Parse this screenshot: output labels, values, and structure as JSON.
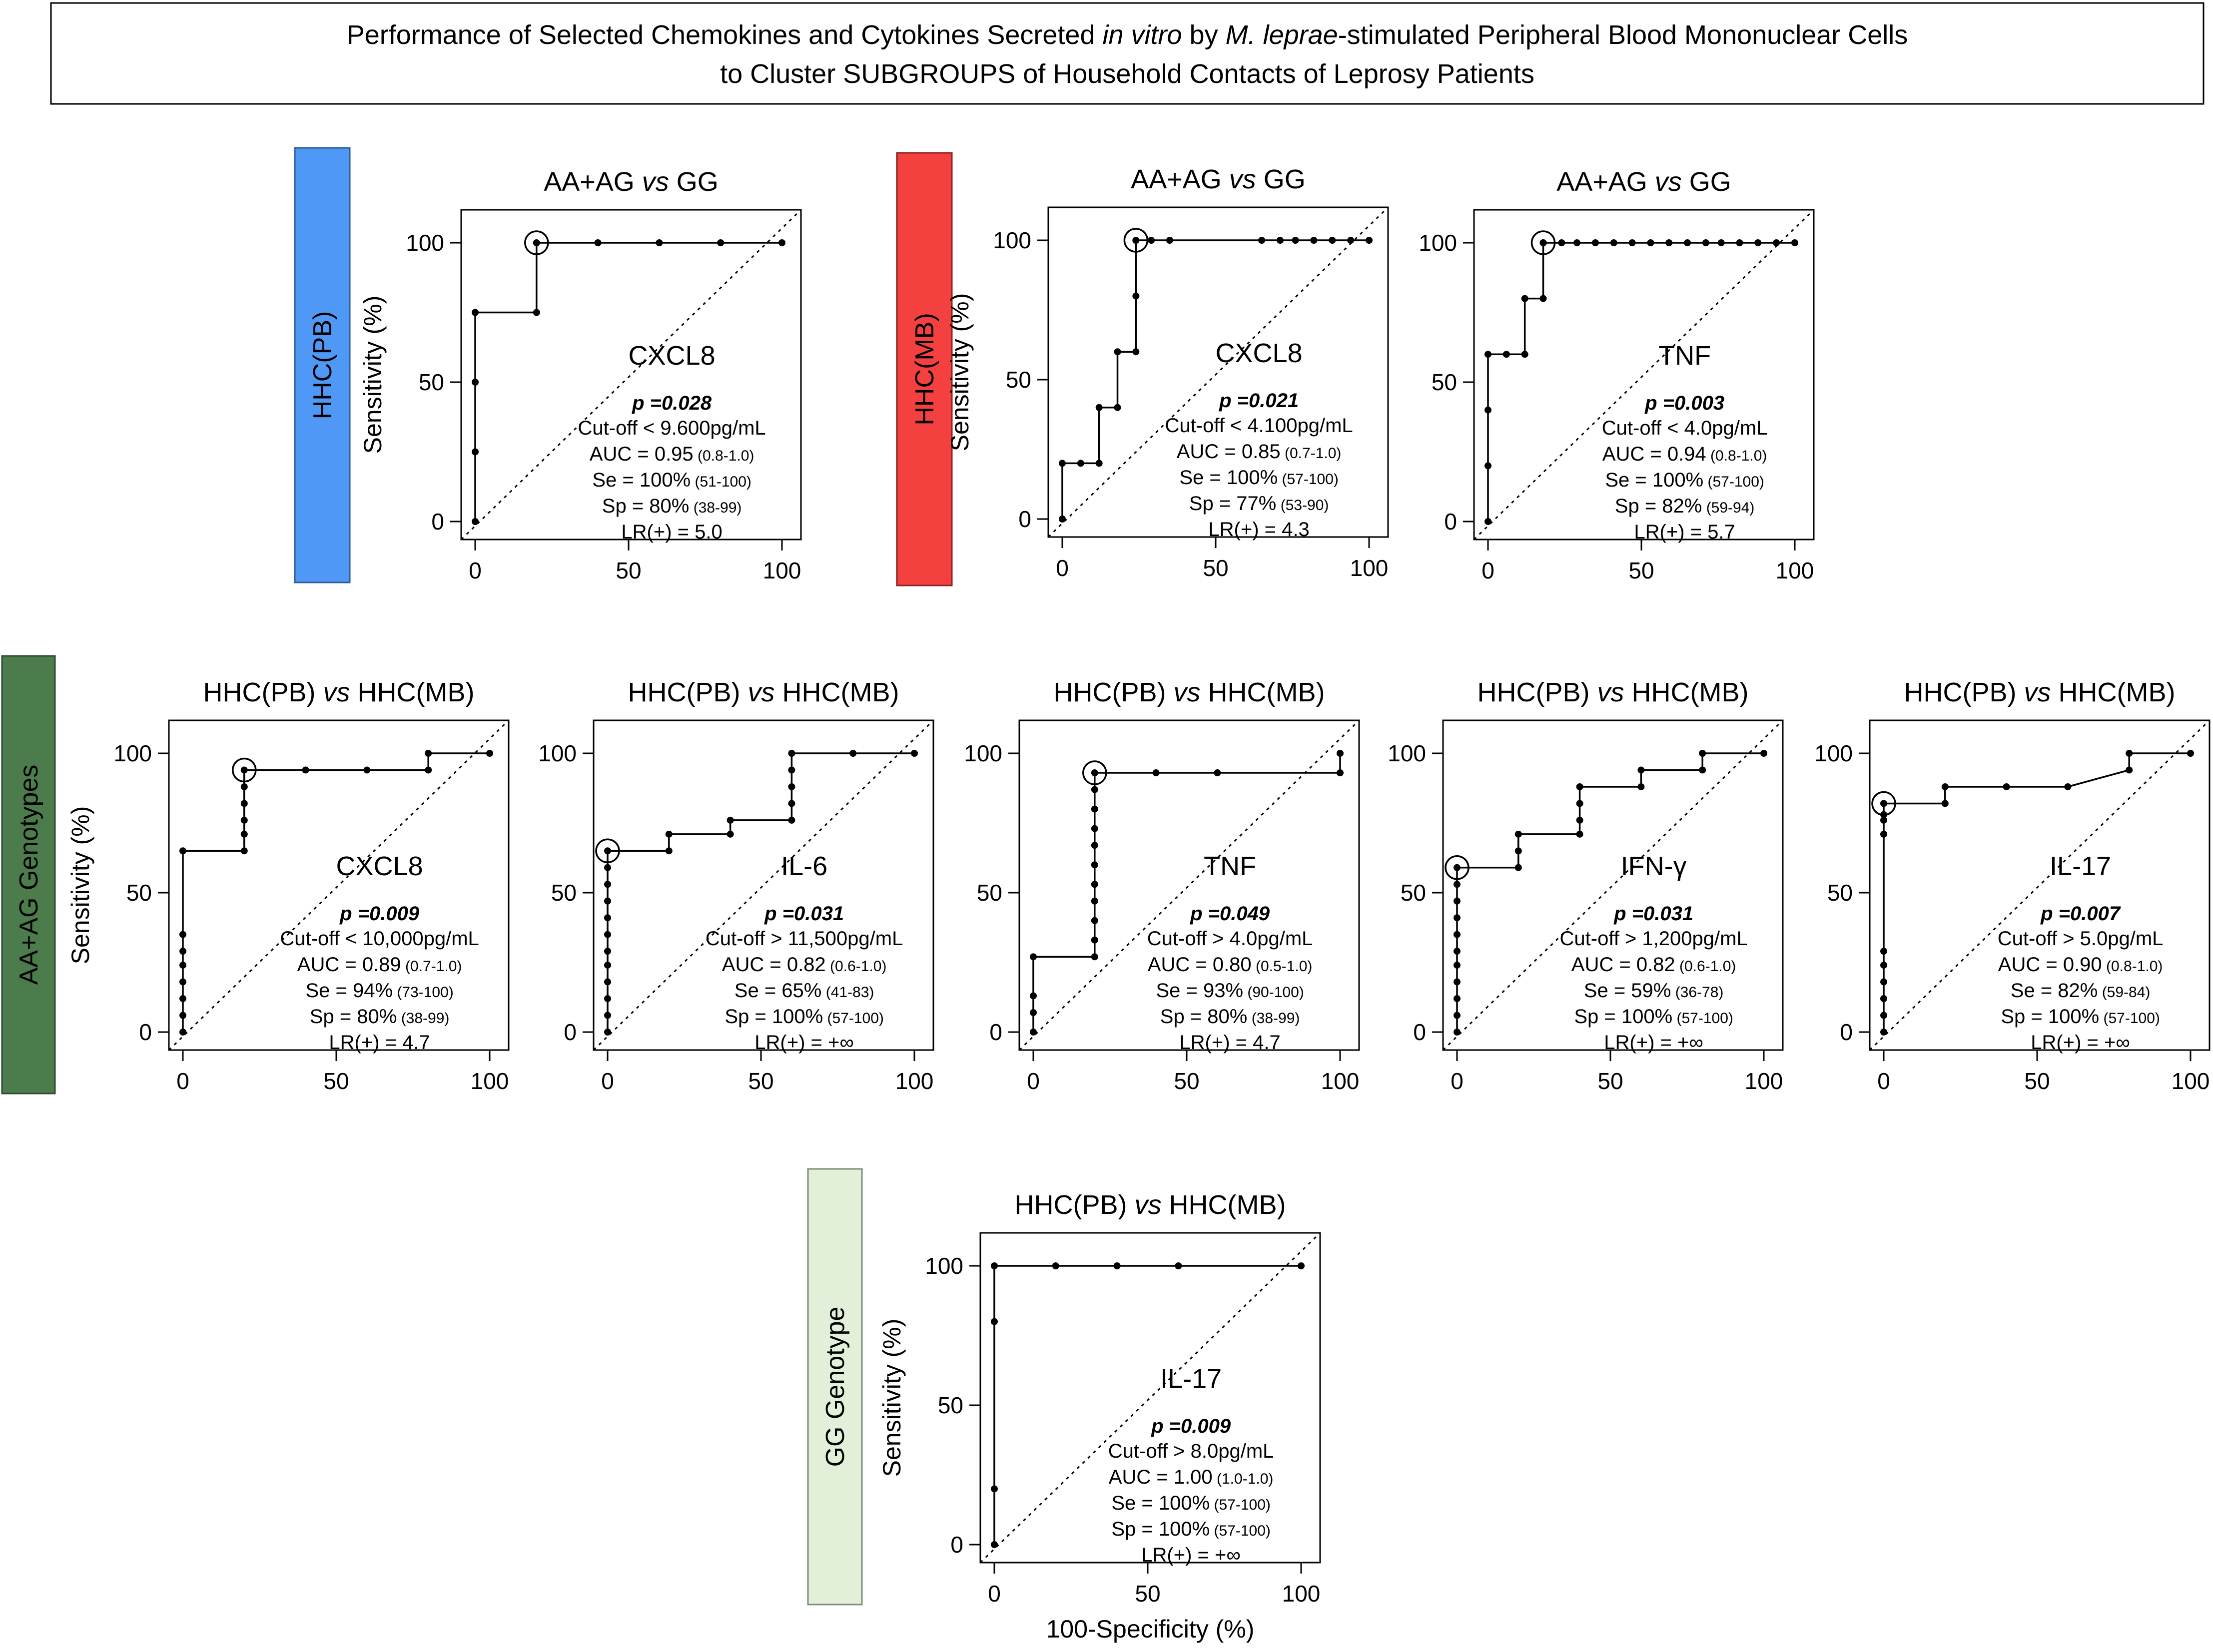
{
  "figure_title": {
    "line1_a": "Performance of Selected Chemokines and Cytokines Secreted ",
    "line1_b": "in vitro",
    "line1_c": " by ",
    "line1_d": "M. leprae",
    "line1_e": "-stimulated Peripheral Blood Mononuclear Cells",
    "line2": "to Cluster SUBGROUPS of Household Contacts of Leprosy Patients"
  },
  "side_labels": [
    {
      "id": "hhc-pb",
      "text": "HHC(PB)",
      "color": "#4f98f5"
    },
    {
      "id": "hhc-mb",
      "text": "HHC(MB)",
      "color": "#f4413f"
    },
    {
      "id": "aa-ag",
      "text": "AA+AG Genotypes",
      "color": "#4c7c4c"
    },
    {
      "id": "gg",
      "text": "GG Genotype",
      "color": "#e2efd9"
    }
  ],
  "axis_labels": {
    "y": "Sensitivity (%)",
    "x": "100-Specificity (%)"
  },
  "vs_word": "vs",
  "chart_data": [
    {
      "type": "line",
      "subtype": "roc",
      "title_a": "AA+AG",
      "title_b": "GG",
      "analyte": "CXCL8",
      "p": "p =0.028",
      "cutoff": "Cut-off < 9.600pg/mL",
      "auc": "AUC = 0.95",
      "auc_ci": "(0.8-1.0)",
      "se": "Se = 100%",
      "se_ci": "(51-100)",
      "sp": "Sp = 80%",
      "sp_ci": "(38-99)",
      "lr": "LR(+) = 5.0",
      "xlabel": "",
      "ylabel": "Sensitivity (%)",
      "xlim": [
        0,
        100
      ],
      "ylim": [
        0,
        100
      ],
      "xticks": [
        0,
        50,
        100
      ],
      "yticks": [
        0,
        50,
        100
      ],
      "x": [
        0,
        0,
        0,
        0,
        20,
        20,
        40,
        60,
        80,
        100
      ],
      "y": [
        0,
        25,
        50,
        75,
        75,
        100,
        100,
        100,
        100,
        100
      ],
      "optimal": [
        20,
        100
      ]
    },
    {
      "type": "line",
      "subtype": "roc",
      "title_a": "AA+AG",
      "title_b": "GG",
      "analyte": "CXCL8",
      "p": "p =0.021",
      "cutoff": "Cut-off < 4.100pg/mL",
      "auc": "AUC = 0.85",
      "auc_ci": "(0.7-1.0)",
      "se": "Se = 100%",
      "se_ci": "(57-100)",
      "sp": "Sp = 77%",
      "sp_ci": "(53-90)",
      "lr": "LR(+) = 4.3",
      "xlabel": "",
      "ylabel": "Sensitivity (%)",
      "xlim": [
        0,
        100
      ],
      "ylim": [
        0,
        100
      ],
      "xticks": [
        0,
        50,
        100
      ],
      "yticks": [
        0,
        50,
        100
      ],
      "x": [
        0,
        0,
        6,
        12,
        12,
        18,
        18,
        24,
        24,
        24,
        24,
        29,
        35,
        65,
        71,
        76,
        82,
        88,
        94,
        100
      ],
      "y": [
        0,
        20,
        20,
        20,
        40,
        40,
        60,
        60,
        80,
        100,
        100,
        100,
        100,
        100,
        100,
        100,
        100,
        100,
        100,
        100
      ],
      "optimal": [
        24,
        100
      ]
    },
    {
      "type": "line",
      "subtype": "roc",
      "title_a": "AA+AG",
      "title_b": "GG",
      "analyte": "TNF",
      "p": "p =0.003",
      "cutoff": "Cut-off < 4.0pg/mL",
      "auc": "AUC = 0.94",
      "auc_ci": "(0.8-1.0)",
      "se": "Se = 100%",
      "se_ci": "(57-100)",
      "sp": "Sp = 82%",
      "sp_ci": "(59-94)",
      "lr": "LR(+) = 5.7",
      "xlabel": "",
      "ylabel": "",
      "xlim": [
        0,
        100
      ],
      "ylim": [
        0,
        100
      ],
      "xticks": [
        0,
        50,
        100
      ],
      "yticks": [
        0,
        50,
        100
      ],
      "x": [
        0,
        0,
        0,
        0,
        6,
        12,
        12,
        18,
        18,
        18,
        24,
        29,
        35,
        41,
        47,
        53,
        59,
        65,
        71,
        76,
        82,
        88,
        94,
        100
      ],
      "y": [
        0,
        20,
        40,
        60,
        60,
        60,
        80,
        80,
        100,
        100,
        100,
        100,
        100,
        100,
        100,
        100,
        100,
        100,
        100,
        100,
        100,
        100,
        100,
        100
      ],
      "optimal": [
        18,
        100
      ]
    },
    {
      "type": "line",
      "subtype": "roc",
      "title_a": "HHC(PB)",
      "title_b": "HHC(MB)",
      "analyte": "CXCL8",
      "p": "p =0.009",
      "cutoff": "Cut-off < 10,000pg/mL",
      "auc": "AUC = 0.89",
      "auc_ci": "(0.7-1.0)",
      "se": "Se = 94%",
      "se_ci": "(73-100)",
      "sp": "Sp = 80%",
      "sp_ci": "(38-99)",
      "lr": "LR(+) = 4.7",
      "xlabel": "",
      "ylabel": "Sensitivity (%)",
      "xlim": [
        0,
        100
      ],
      "ylim": [
        0,
        100
      ],
      "xticks": [
        0,
        50,
        100
      ],
      "yticks": [
        0,
        50,
        100
      ],
      "x": [
        0,
        0,
        0,
        0,
        0,
        0,
        0,
        0,
        20,
        20,
        20,
        20,
        20,
        20,
        40,
        60,
        80,
        80,
        100
      ],
      "y": [
        0,
        6,
        12,
        18,
        24,
        29,
        35,
        65,
        65,
        71,
        76,
        82,
        88,
        94,
        94,
        94,
        94,
        100,
        100
      ],
      "optimal": [
        20,
        94
      ]
    },
    {
      "type": "line",
      "subtype": "roc",
      "title_a": "HHC(PB)",
      "title_b": "HHC(MB)",
      "analyte": "IL-6",
      "p": "p =0.031",
      "cutoff": "Cut-off > 11,500pg/mL",
      "auc": "AUC = 0.82",
      "auc_ci": "(0.6-1.0)",
      "se": "Se = 65%",
      "se_ci": "(41-83)",
      "sp": "Sp = 100%",
      "sp_ci": "(57-100)",
      "lr": "LR(+) = +∞",
      "xlabel": "",
      "ylabel": "",
      "xlim": [
        0,
        100
      ],
      "ylim": [
        0,
        100
      ],
      "xticks": [
        0,
        50,
        100
      ],
      "yticks": [
        0,
        50,
        100
      ],
      "x": [
        0,
        0,
        0,
        0,
        0,
        0,
        0,
        0,
        0,
        0,
        0,
        0,
        20,
        20,
        40,
        40,
        60,
        60,
        60,
        60,
        60,
        80,
        100
      ],
      "y": [
        0,
        6,
        12,
        18,
        24,
        29,
        35,
        41,
        47,
        53,
        59,
        65,
        65,
        71,
        71,
        76,
        76,
        82,
        88,
        94,
        100,
        100,
        100
      ],
      "optimal": [
        0,
        65
      ]
    },
    {
      "type": "line",
      "subtype": "roc",
      "title_a": "HHC(PB)",
      "title_b": "HHC(MB)",
      "analyte": "TNF",
      "p": "p =0.049",
      "cutoff": "Cut-off > 4.0pg/mL",
      "auc": "AUC = 0.80",
      "auc_ci": "(0.5-1.0)",
      "se": "Se = 93%",
      "se_ci": "(90-100)",
      "sp": "Sp = 80%",
      "sp_ci": "(38-99)",
      "lr": "LR(+) = 4.7",
      "xlabel": "",
      "ylabel": "",
      "xlim": [
        0,
        100
      ],
      "ylim": [
        0,
        100
      ],
      "xticks": [
        0,
        50,
        100
      ],
      "yticks": [
        0,
        50,
        100
      ],
      "x": [
        0,
        0,
        0,
        0,
        20,
        20,
        20,
        20,
        20,
        20,
        20,
        20,
        20,
        20,
        20,
        40,
        60,
        100,
        100
      ],
      "y": [
        0,
        7,
        13,
        27,
        27,
        33,
        40,
        47,
        53,
        60,
        67,
        73,
        80,
        87,
        93,
        93,
        93,
        93,
        100
      ],
      "optimal": [
        20,
        93
      ]
    },
    {
      "type": "line",
      "subtype": "roc",
      "title_a": "HHC(PB)",
      "title_b": "HHC(MB)",
      "analyte": "IFN-γ",
      "p": "p =0.031",
      "cutoff": "Cut-off > 1,200pg/mL",
      "auc": "AUC = 0.82",
      "auc_ci": "(0.6-1.0)",
      "se": "Se = 59%",
      "se_ci": "(36-78)",
      "sp": "Sp = 100%",
      "sp_ci": "(57-100)",
      "lr": "LR(+) = +∞",
      "xlabel": "",
      "ylabel": "",
      "xlim": [
        0,
        100
      ],
      "ylim": [
        0,
        100
      ],
      "xticks": [
        0,
        50,
        100
      ],
      "yticks": [
        0,
        50,
        100
      ],
      "x": [
        0,
        0,
        0,
        0,
        0,
        0,
        0,
        0,
        0,
        0,
        0,
        20,
        20,
        20,
        40,
        40,
        40,
        40,
        60,
        60,
        80,
        80,
        100
      ],
      "y": [
        0,
        6,
        12,
        18,
        24,
        29,
        35,
        41,
        47,
        53,
        59,
        59,
        65,
        71,
        71,
        76,
        82,
        88,
        88,
        94,
        94,
        100,
        100
      ],
      "optimal": [
        0,
        59
      ]
    },
    {
      "type": "line",
      "subtype": "roc",
      "title_a": "HHC(PB)",
      "title_b": "HHC(MB)",
      "analyte": "IL-17",
      "p": "p =0.007",
      "cutoff": "Cut-off > 5.0pg/mL",
      "auc": "AUC = 0.90",
      "auc_ci": "(0.8-1.0)",
      "se": "Se = 82%",
      "se_ci": "(59-84)",
      "sp": "Sp = 100%",
      "sp_ci": "(57-100)",
      "lr": "LR(+) = +∞",
      "xlabel": "",
      "ylabel": "",
      "xlim": [
        0,
        100
      ],
      "ylim": [
        0,
        100
      ],
      "xticks": [
        0,
        50,
        100
      ],
      "yticks": [
        0,
        50,
        100
      ],
      "x": [
        0,
        0,
        0,
        0,
        0,
        0,
        0,
        0,
        0,
        0,
        20,
        20,
        40,
        60,
        80,
        80,
        100
      ],
      "y": [
        0,
        6,
        12,
        18,
        24,
        29,
        71,
        76,
        78,
        82,
        82,
        88,
        88,
        88,
        94,
        100,
        100
      ],
      "optimal": [
        0,
        82
      ]
    },
    {
      "type": "line",
      "subtype": "roc",
      "title_a": "HHC(PB)",
      "title_b": "HHC(MB)",
      "analyte": "IL-17",
      "p": "p =0.009",
      "cutoff": "Cut-off > 8.0pg/mL",
      "auc": "AUC = 1.00",
      "auc_ci": "(1.0-1.0)",
      "se": "Se = 100%",
      "se_ci": "(57-100)",
      "sp": "Sp = 100%",
      "sp_ci": "(57-100)",
      "lr": "LR(+) = +∞",
      "xlabel": "100-Specificity (%)",
      "ylabel": "Sensitivity (%)",
      "xlim": [
        0,
        100
      ],
      "ylim": [
        0,
        100
      ],
      "xticks": [
        0,
        50,
        100
      ],
      "yticks": [
        0,
        50,
        100
      ],
      "x": [
        0,
        0,
        0,
        0,
        20,
        40,
        60,
        100
      ],
      "y": [
        0,
        20,
        80,
        100,
        100,
        100,
        100,
        100
      ],
      "optimal": null
    }
  ]
}
